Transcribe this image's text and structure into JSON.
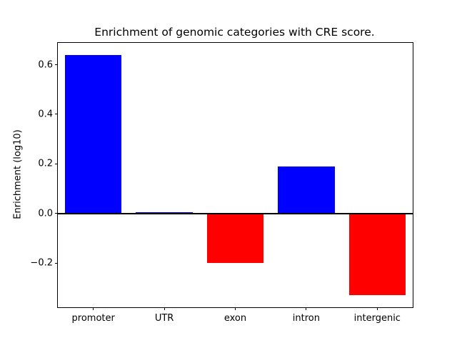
{
  "chart_data": {
    "type": "bar",
    "title": "Enrichment of genomic categories with CRE score.",
    "xlabel": "",
    "ylabel": "Enrichment (log10)",
    "categories": [
      "promoter",
      "UTR",
      "exon",
      "intron",
      "intergenic"
    ],
    "values": [
      0.64,
      0.005,
      -0.2,
      0.19,
      -0.33
    ],
    "bar_colors": [
      "#0000ff",
      "#0000ff",
      "#ff0000",
      "#0000ff",
      "#ff0000"
    ],
    "positive_color": "#0000ff",
    "negative_color": "#ff0000",
    "ylim": [
      -0.378,
      0.688
    ],
    "yticks": [
      -0.2,
      0.0,
      0.2,
      0.4,
      0.6
    ],
    "ytick_labels": [
      "−0.2",
      "0.0",
      "0.2",
      "0.4",
      "0.6"
    ],
    "grid": false,
    "legend": "none",
    "zero_line": true,
    "background_color": "#ffffff",
    "axis_color": "#000000"
  }
}
